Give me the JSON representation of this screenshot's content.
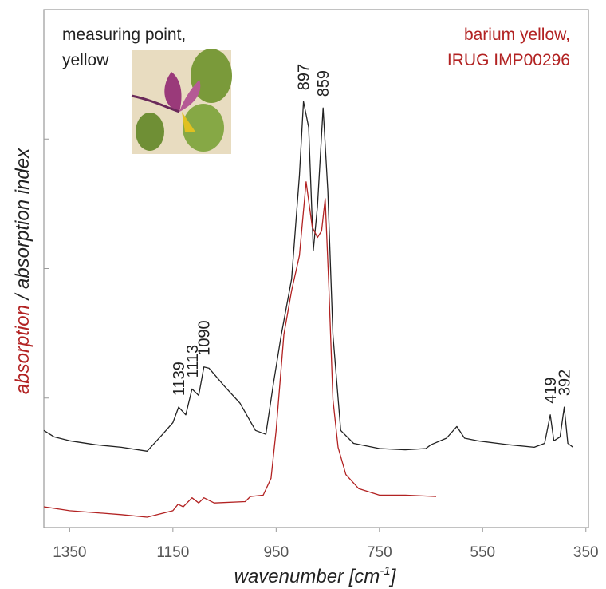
{
  "chart_data": {
    "type": "line",
    "xlabel": {
      "text": "wavenumber [cm",
      "superscript": "-1",
      "suffix": "]"
    },
    "ylabel": [
      {
        "text": "absorption",
        "color": "#b22222"
      },
      {
        "text": " / absorption index",
        "color": "#222222"
      }
    ],
    "xlim": [
      1400,
      345
    ],
    "xticks": [
      1350,
      1150,
      950,
      750,
      550,
      350
    ],
    "ylim": [
      0,
      4
    ],
    "yticks": [
      0,
      1,
      2,
      3
    ],
    "series": [
      {
        "name": [
          "measuring point,",
          "yellow"
        ],
        "color": "#222222",
        "x": [
          1400,
          1380,
          1350,
          1300,
          1250,
          1200,
          1170,
          1150,
          1139,
          1125,
          1113,
          1100,
          1090,
          1080,
          1050,
          1020,
          990,
          970,
          955,
          940,
          920,
          905,
          897,
          887,
          878,
          870,
          859,
          850,
          840,
          825,
          800,
          750,
          700,
          660,
          650,
          620,
          600,
          585,
          560,
          500,
          450,
          430,
          419,
          412,
          400,
          392,
          385,
          375
        ],
        "values": [
          0.75,
          0.7,
          0.67,
          0.64,
          0.62,
          0.59,
          0.72,
          0.81,
          0.93,
          0.87,
          1.07,
          1.02,
          1.24,
          1.23,
          1.09,
          0.96,
          0.75,
          0.72,
          1.12,
          1.49,
          1.92,
          2.72,
          3.29,
          3.09,
          2.14,
          2.48,
          3.24,
          2.6,
          1.49,
          0.75,
          0.65,
          0.61,
          0.6,
          0.61,
          0.64,
          0.69,
          0.78,
          0.69,
          0.67,
          0.64,
          0.62,
          0.65,
          0.87,
          0.67,
          0.7,
          0.93,
          0.65,
          0.62
        ],
        "peaks": [
          1139,
          1113,
          1090,
          897,
          859,
          419,
          392
        ]
      },
      {
        "name": [
          "barium yellow,",
          "IRUG IMP00296"
        ],
        "color": "#b22222",
        "x": [
          1400,
          1350,
          1250,
          1200,
          1150,
          1140,
          1130,
          1113,
          1100,
          1090,
          1070,
          1010,
          1000,
          975,
          960,
          950,
          935,
          920,
          905,
          892,
          880,
          870,
          862,
          855,
          848,
          840,
          830,
          815,
          790,
          750,
          700,
          640
        ],
        "values": [
          0.16,
          0.13,
          0.1,
          0.08,
          0.13,
          0.18,
          0.16,
          0.23,
          0.19,
          0.23,
          0.19,
          0.2,
          0.24,
          0.25,
          0.38,
          0.75,
          1.49,
          1.83,
          2.1,
          2.67,
          2.32,
          2.24,
          2.29,
          2.54,
          1.86,
          0.99,
          0.62,
          0.41,
          0.3,
          0.25,
          0.25,
          0.24
        ]
      }
    ]
  }
}
